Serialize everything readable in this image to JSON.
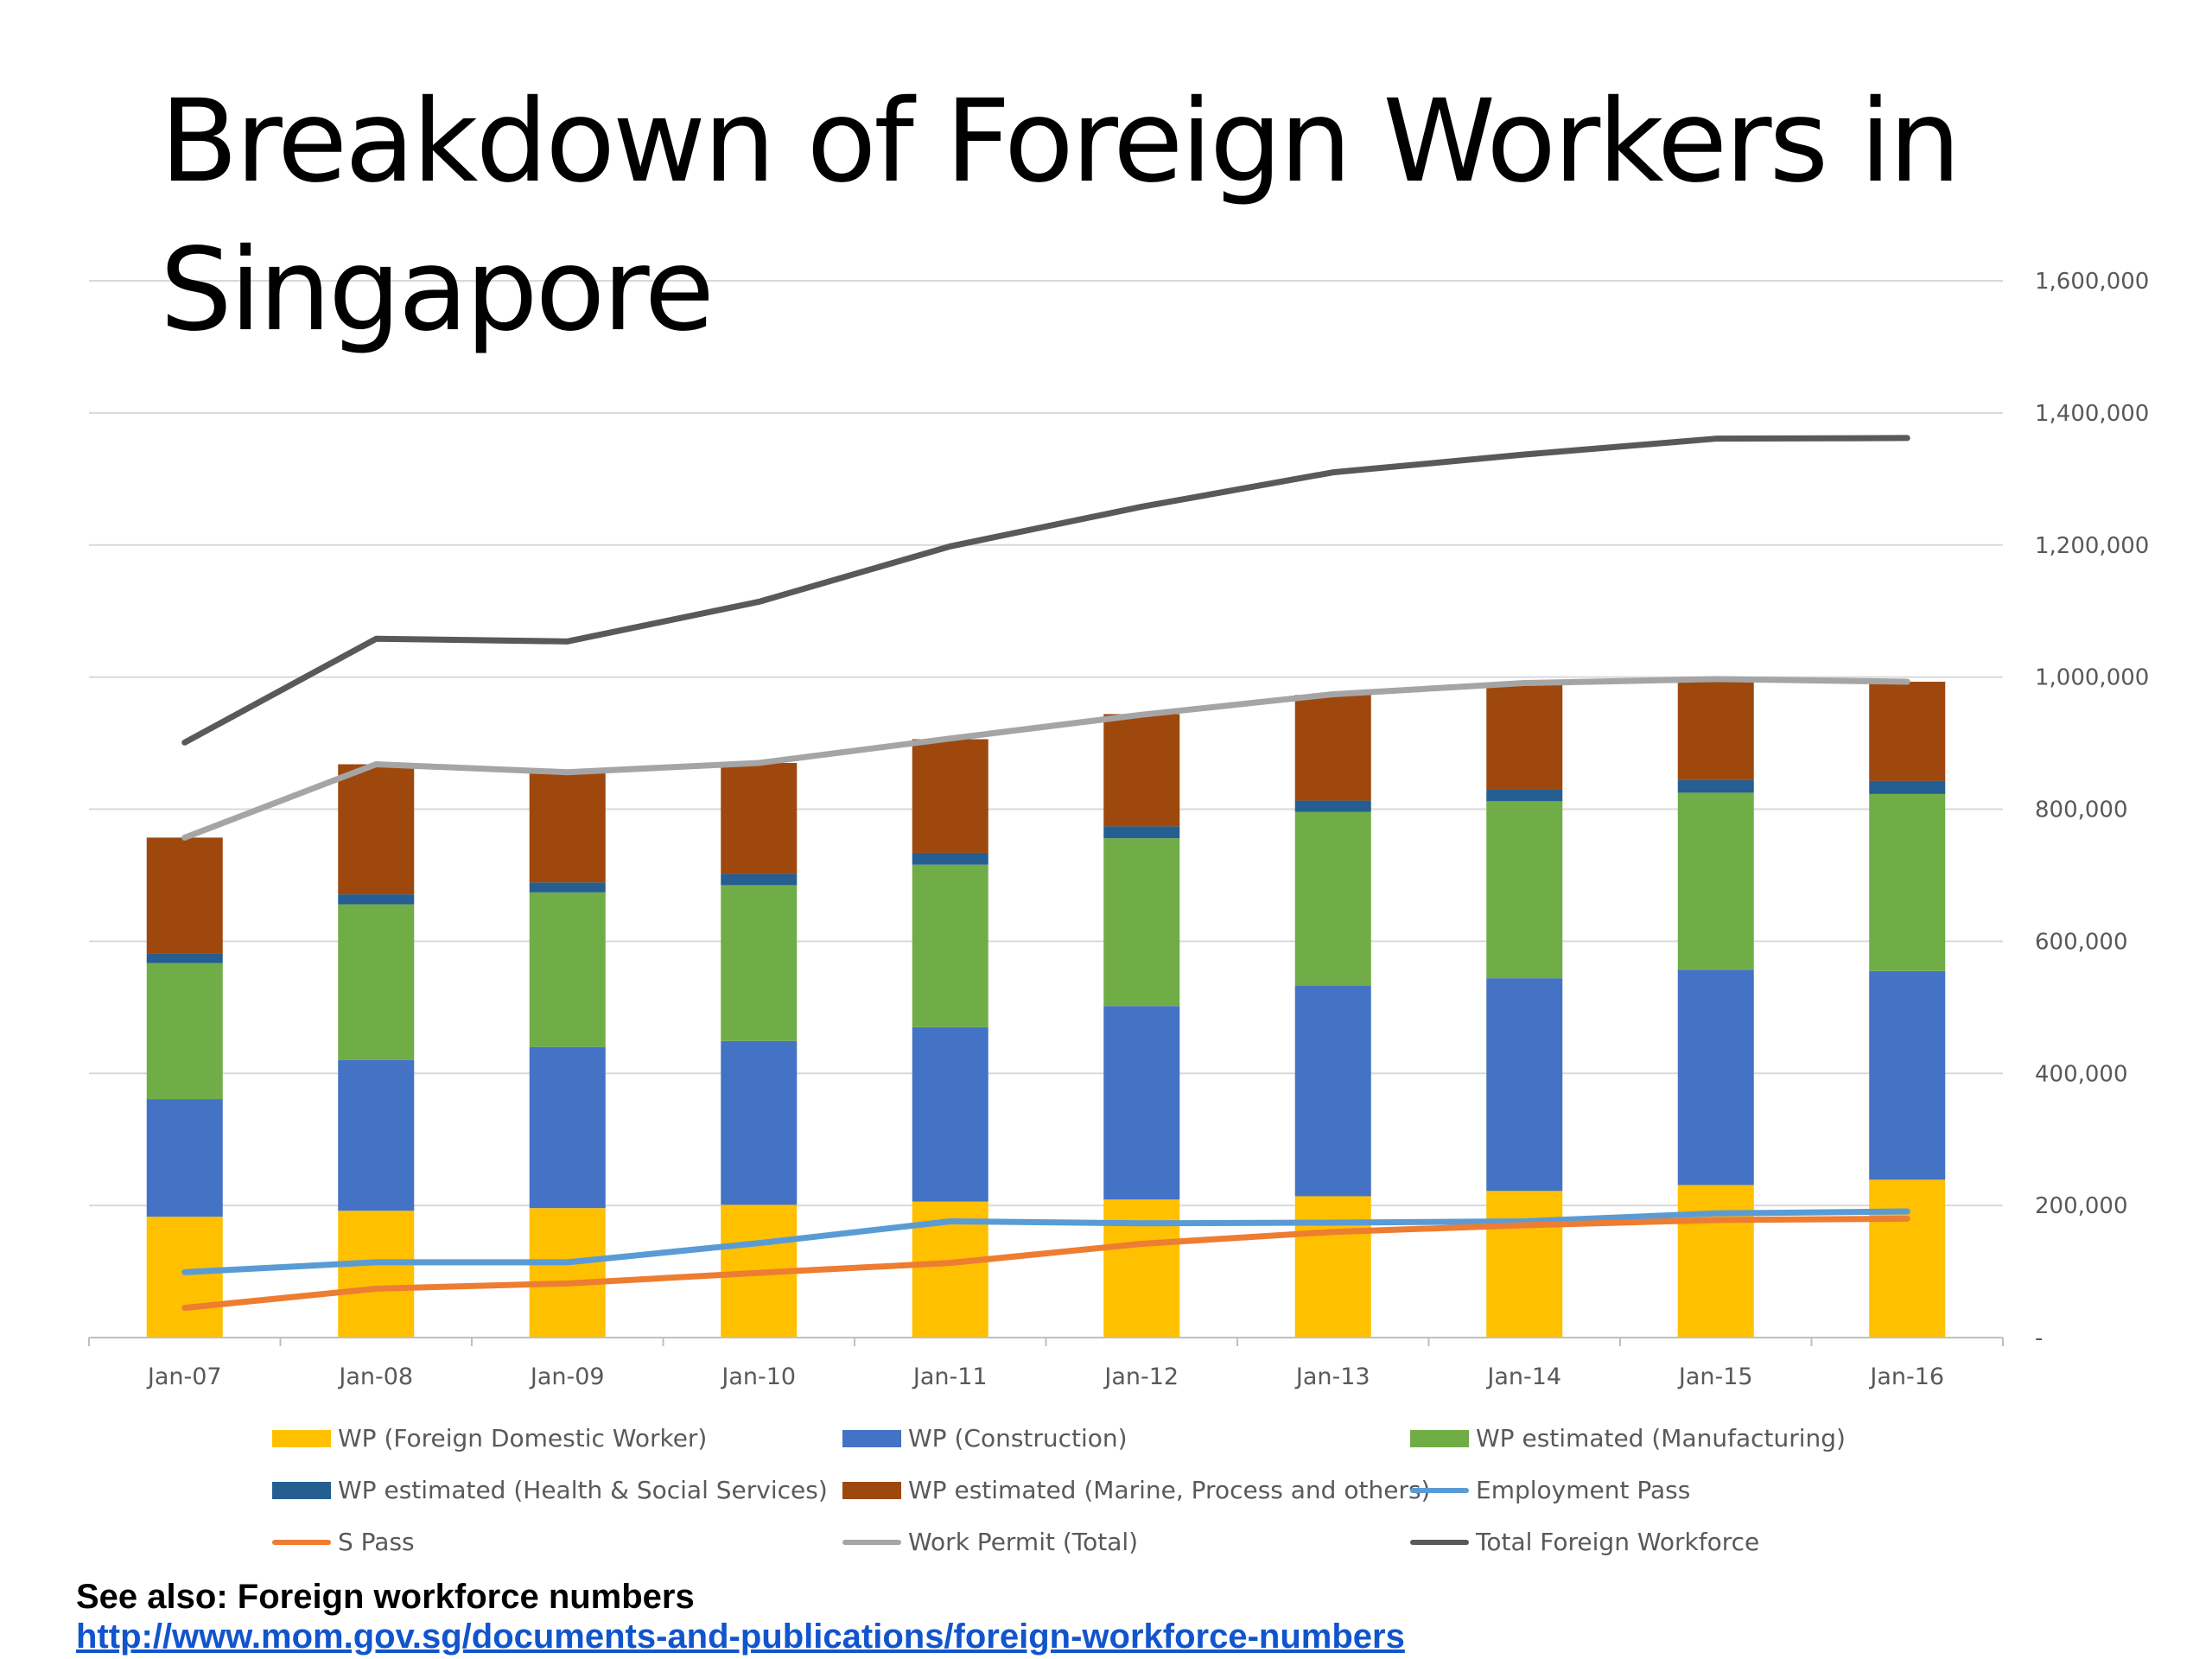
{
  "slide": {
    "title": "Breakdown of Foreign Workers in Singapore",
    "footer_note": "See also: Foreign workforce numbers",
    "footer_link": "http://www.mom.gov.sg/documents-and-publications/foreign-workforce-numbers"
  },
  "chart_data": {
    "type": "bar",
    "stacked": true,
    "title": "",
    "xlabel": "",
    "ylabel": "",
    "ylim": [
      0,
      1600000
    ],
    "y_ticks": [
      0,
      200000,
      400000,
      600000,
      800000,
      1000000,
      1200000,
      1400000,
      1600000
    ],
    "y_tick_labels": [
      "-",
      "200,000",
      "400,000",
      "600,000",
      "800,000",
      "1,000,000",
      "1,200,000",
      "1,400,000",
      "1,600,000"
    ],
    "y_axis_side": "right",
    "grid": true,
    "legend_position": "bottom",
    "categories": [
      "Jan-07",
      "Jan-08",
      "Jan-09",
      "Jan-10",
      "Jan-11",
      "Jan-12",
      "Jan-13",
      "Jan-14",
      "Jan-15",
      "Jan-16"
    ],
    "series": [
      {
        "name": "WP (Foreign Domestic Worker)",
        "kind": "bar",
        "color": "#FFC000",
        "values": [
          183000,
          192000,
          196000,
          201000,
          206000,
          209000,
          214000,
          222000,
          231000,
          239000
        ]
      },
      {
        "name": "WP (Construction)",
        "kind": "bar",
        "color": "#4472C4",
        "values": [
          178000,
          228000,
          244000,
          248000,
          264000,
          293000,
          319000,
          322000,
          326000,
          316000
        ]
      },
      {
        "name": "WP estimated (Manufacturing)",
        "kind": "bar",
        "color": "#70AD47",
        "values": [
          206000,
          236000,
          234000,
          236000,
          246000,
          254000,
          263000,
          268000,
          268000,
          268000
        ]
      },
      {
        "name": "WP estimated (Health & Social Services)",
        "kind": "bar",
        "color": "#255E91",
        "values": [
          15000,
          15000,
          15000,
          17000,
          18000,
          18000,
          17000,
          18000,
          19000,
          20000
        ]
      },
      {
        "name": "WP estimated (Marine, Process and others)",
        "kind": "bar",
        "color": "#9E480E",
        "values": [
          175000,
          197000,
          166000,
          168000,
          172000,
          170000,
          160000,
          161000,
          151000,
          150000
        ]
      },
      {
        "name": "Employment Pass",
        "kind": "line",
        "color": "#5B9BD5",
        "values": [
          99000,
          114000,
          114000,
          143000,
          176000,
          173000,
          174000,
          176000,
          188000,
          191000
        ]
      },
      {
        "name": "S Pass",
        "kind": "line",
        "color": "#ED7D31",
        "values": [
          45000,
          74000,
          82000,
          98000,
          113000,
          142000,
          160000,
          170000,
          178000,
          180000
        ]
      },
      {
        "name": "Work Permit (Total)",
        "kind": "line",
        "color": "#A5A5A5",
        "values": [
          757000,
          868000,
          856000,
          870000,
          907000,
          943000,
          974000,
          991000,
          997000,
          993000
        ]
      },
      {
        "name": "Total Foreign Workforce",
        "kind": "line",
        "color": "#595959",
        "values": [
          901000,
          1058000,
          1054000,
          1114000,
          1198000,
          1258000,
          1310000,
          1337000,
          1361000,
          1362000
        ]
      }
    ]
  },
  "legend": [
    {
      "label": "WP (Foreign Domestic Worker)",
      "color": "#FFC000",
      "shape": "box"
    },
    {
      "label": "WP (Construction)",
      "color": "#4472C4",
      "shape": "box"
    },
    {
      "label": "WP estimated (Manufacturing)",
      "color": "#70AD47",
      "shape": "box"
    },
    {
      "label": "WP estimated (Health & Social Services)",
      "color": "#255E91",
      "shape": "box"
    },
    {
      "label": "WP estimated (Marine, Process and others)",
      "color": "#9E480E",
      "shape": "box"
    },
    {
      "label": "Employment Pass",
      "color": "#5B9BD5",
      "shape": "line"
    },
    {
      "label": "S Pass",
      "color": "#ED7D31",
      "shape": "line"
    },
    {
      "label": "Work Permit (Total)",
      "color": "#A5A5A5",
      "shape": "line"
    },
    {
      "label": "Total Foreign Workforce",
      "color": "#595959",
      "shape": "line"
    }
  ]
}
